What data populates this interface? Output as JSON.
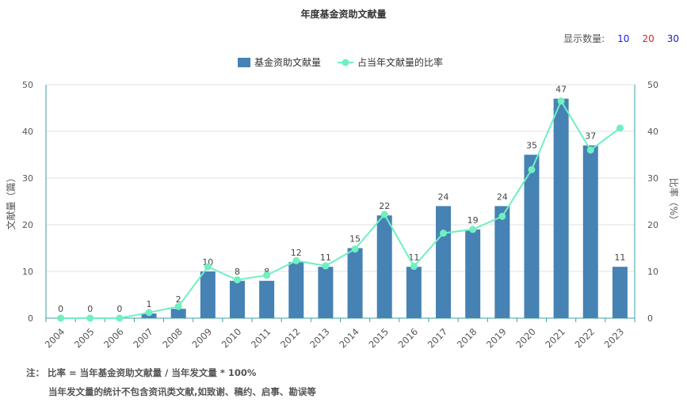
{
  "title": "年度基金资助文献量",
  "display_count": {
    "label": "显示数量:",
    "options": [
      {
        "text": "10",
        "color": "#2222dd"
      },
      {
        "text": "20",
        "color": "#dd2222"
      },
      {
        "text": "30",
        "color": "#2222aa"
      }
    ]
  },
  "notes": {
    "line1": "注：  比率 = 当年基金资助文献量 / 当年发文量 * 100%",
    "line2": "当年发文量的统计不包含资讯类文献,如致谢、稿约、启事、勘误等"
  },
  "chart_data": {
    "type": "bar",
    "categories": [
      "2004",
      "2005",
      "2006",
      "2007",
      "2008",
      "2009",
      "2010",
      "2011",
      "2012",
      "2013",
      "2014",
      "2015",
      "2016",
      "2017",
      "2018",
      "2019",
      "2020",
      "2021",
      "2022",
      "2023"
    ],
    "series": [
      {
        "name": "基金资助文献量",
        "type": "bar",
        "axis": "left",
        "color": "#4682b4",
        "values": [
          0,
          0,
          0,
          1,
          2,
          10,
          8,
          8,
          12,
          11,
          15,
          22,
          11,
          24,
          19,
          24,
          35,
          47,
          37,
          11
        ],
        "labels": [
          "0",
          "0",
          "0",
          "1",
          "2",
          "10",
          "8",
          "8",
          "12",
          "11",
          "15",
          "22",
          "11",
          "24",
          "19",
          "24",
          "35",
          "47",
          "37",
          "11"
        ]
      },
      {
        "name": "占当年文献量的比率",
        "type": "line",
        "axis": "right",
        "color": "#6ff0c0",
        "values": [
          0,
          0,
          0,
          1.2,
          2.5,
          11.0,
          8.2,
          9.2,
          12.3,
          11.2,
          14.8,
          22.2,
          11.1,
          18.2,
          19.0,
          21.8,
          31.8,
          46.5,
          36.0,
          40.7
        ]
      }
    ],
    "ylabel": "文献量（篇）",
    "y2label": "比率（%）",
    "ylim": [
      0,
      50
    ],
    "y2lim": [
      0,
      50
    ],
    "yticks": [
      "0",
      "10",
      "20",
      "30",
      "40",
      "50"
    ],
    "y2ticks": [
      "0",
      "10",
      "20",
      "30",
      "40",
      "50"
    ],
    "grid": true,
    "legend_position": "top-center"
  }
}
